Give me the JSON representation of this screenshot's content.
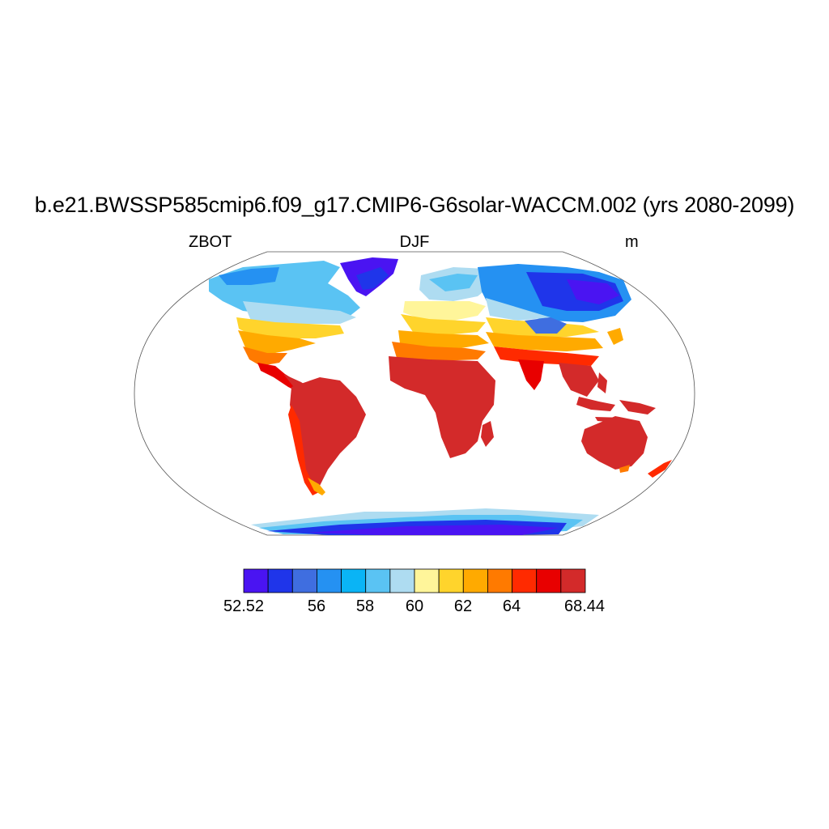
{
  "title": "b.e21.BWSSP585cmip6.f09_g17.CMIP6-G6solar-WACCM.002 (yrs 2080-2099)",
  "left_string": "ZBOT",
  "center_string": "DJF",
  "right_string": "m",
  "colorbar": {
    "colors": [
      "#4a14f2",
      "#1f35ea",
      "#3f6ee0",
      "#2591f2",
      "#0ab4f5",
      "#5ac3f3",
      "#aedcf1",
      "#fff59a",
      "#ffd42c",
      "#ffaa00",
      "#ff7a00",
      "#ff2a00",
      "#e80000",
      "#d32a2a"
    ],
    "labels": [
      "52.52",
      "56",
      "58",
      "60",
      "62",
      "64",
      "68.44"
    ]
  }
}
